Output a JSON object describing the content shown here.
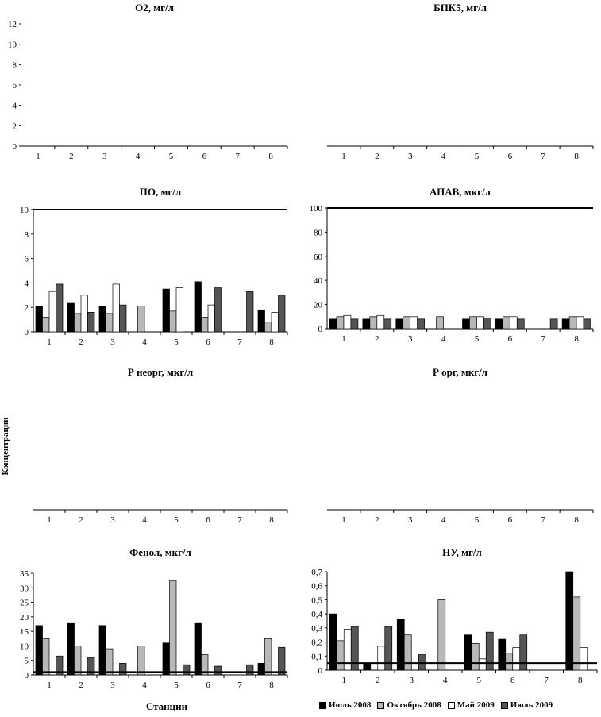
{
  "colors": {
    "jul2008": "#000000",
    "oct2008": "#b8b8b8",
    "may2009": "#ffffff",
    "jul2009": "#555555"
  },
  "x_axis_label": "Станции",
  "y_axis_label": "Концентрации",
  "legend": [
    {
      "key": "jul2008",
      "label": "Июль 2008"
    },
    {
      "key": "oct2008",
      "label": "Октябрь 2008"
    },
    {
      "key": "may2009",
      "label": "Май 2009"
    },
    {
      "key": "jul2009",
      "label": "Июль 2009"
    }
  ],
  "chart_data": [
    {
      "type": "bar",
      "title": "О2, мг/л",
      "categories": [
        "1",
        "2",
        "3",
        "4",
        "5",
        "6",
        "7",
        "8"
      ],
      "ylim": [
        0,
        12
      ],
      "yticks": [
        "0",
        "2",
        "4",
        "6",
        "8",
        "10",
        "12"
      ],
      "ytick_values": [
        0,
        2,
        4,
        6,
        8,
        10,
        12
      ],
      "series": [
        {
          "key": "jul2008",
          "name": "Июль 2008",
          "values": [
            null,
            null,
            null,
            null,
            null,
            null,
            null,
            null
          ]
        },
        {
          "key": "oct2008",
          "name": "Октябрь 2008",
          "values": [
            null,
            null,
            null,
            null,
            null,
            null,
            null,
            null
          ]
        },
        {
          "key": "may2009",
          "name": "Май 2009",
          "values": [
            null,
            null,
            null,
            null,
            null,
            null,
            null,
            null
          ]
        },
        {
          "key": "jul2009",
          "name": "Июль 2009",
          "values": [
            null,
            null,
            null,
            null,
            null,
            null,
            null,
            null
          ]
        }
      ],
      "threshold": null
    },
    {
      "type": "bar",
      "title": "БПК5, мг/л",
      "categories": [
        "1",
        "2",
        "3",
        "4",
        "5",
        "6",
        "7",
        "8"
      ],
      "ylim": [
        0,
        12
      ],
      "yticks": [],
      "ytick_values": [],
      "series": [
        {
          "key": "jul2008",
          "name": "Июль 2008",
          "values": [
            null,
            null,
            null,
            null,
            null,
            null,
            null,
            null
          ]
        },
        {
          "key": "oct2008",
          "name": "Октябрь 2008",
          "values": [
            null,
            null,
            null,
            null,
            null,
            null,
            null,
            null
          ]
        },
        {
          "key": "may2009",
          "name": "Май 2009",
          "values": [
            null,
            null,
            null,
            null,
            null,
            null,
            null,
            null
          ]
        },
        {
          "key": "jul2009",
          "name": "Июль 2009",
          "values": [
            null,
            null,
            null,
            null,
            null,
            null,
            null,
            null
          ]
        }
      ],
      "threshold": null
    },
    {
      "type": "bar",
      "title": "ПО, мг/л",
      "categories": [
        "1",
        "2",
        "3",
        "4",
        "5",
        "6",
        "7",
        "8"
      ],
      "ylim": [
        0,
        10
      ],
      "yticks": [
        "0",
        "2",
        "4",
        "6",
        "8",
        "10"
      ],
      "ytick_values": [
        0,
        2,
        4,
        6,
        8,
        10
      ],
      "series": [
        {
          "key": "jul2008",
          "name": "Июль 2008",
          "values": [
            2.1,
            2.4,
            2.1,
            null,
            3.5,
            4.1,
            null,
            1.8
          ]
        },
        {
          "key": "oct2008",
          "name": "Октябрь 2008",
          "values": [
            1.2,
            1.5,
            1.5,
            2.1,
            1.7,
            1.2,
            null,
            0.8
          ]
        },
        {
          "key": "may2009",
          "name": "Май 2009",
          "values": [
            3.3,
            3.0,
            3.9,
            null,
            3.6,
            2.2,
            null,
            1.6
          ]
        },
        {
          "key": "jul2009",
          "name": "Июль 2009",
          "values": [
            3.9,
            1.6,
            2.2,
            null,
            null,
            3.6,
            3.3,
            3.0
          ]
        }
      ],
      "threshold": 10
    },
    {
      "type": "bar",
      "title": "АПАВ, мкг/л",
      "categories": [
        "1",
        "2",
        "3",
        "4",
        "5",
        "6",
        "7",
        "8"
      ],
      "ylim": [
        0,
        100
      ],
      "yticks": [
        "0",
        "20",
        "40",
        "60",
        "80",
        "100"
      ],
      "ytick_values": [
        0,
        20,
        40,
        60,
        80,
        100
      ],
      "series": [
        {
          "key": "jul2008",
          "name": "Июль 2008",
          "values": [
            8,
            8,
            8,
            null,
            8,
            8,
            null,
            8
          ]
        },
        {
          "key": "oct2008",
          "name": "Октябрь 2008",
          "values": [
            10,
            10,
            10,
            10,
            10,
            10,
            null,
            10
          ]
        },
        {
          "key": "may2009",
          "name": "Май 2009",
          "values": [
            11,
            11,
            10,
            null,
            10,
            10,
            null,
            10
          ]
        },
        {
          "key": "jul2009",
          "name": "Июль 2009",
          "values": [
            8,
            8,
            8,
            null,
            9,
            8,
            8,
            8
          ]
        }
      ],
      "threshold": 100
    },
    {
      "type": "bar",
      "title": "Р неорг, мкг/л",
      "categories": [
        "1",
        "2",
        "3",
        "4",
        "5",
        "6",
        "7",
        "8"
      ],
      "ylim": [
        0,
        12
      ],
      "yticks": [],
      "ytick_values": [],
      "series": [
        {
          "key": "jul2008",
          "name": "Июль 2008",
          "values": [
            null,
            null,
            null,
            null,
            null,
            null,
            null,
            null
          ]
        },
        {
          "key": "oct2008",
          "name": "Октябрь 2008",
          "values": [
            null,
            null,
            null,
            null,
            null,
            null,
            null,
            null
          ]
        },
        {
          "key": "may2009",
          "name": "Май 2009",
          "values": [
            null,
            null,
            null,
            null,
            null,
            null,
            null,
            null
          ]
        },
        {
          "key": "jul2009",
          "name": "Июль 2009",
          "values": [
            null,
            null,
            null,
            null,
            null,
            null,
            null,
            null
          ]
        }
      ],
      "threshold": null
    },
    {
      "type": "bar",
      "title": "Р орг, мкг/л",
      "categories": [
        "1",
        "2",
        "3",
        "4",
        "5",
        "6",
        "7",
        "8"
      ],
      "ylim": [
        0,
        12
      ],
      "yticks": [],
      "ytick_values": [],
      "series": [
        {
          "key": "jul2008",
          "name": "Июль 2008",
          "values": [
            null,
            null,
            null,
            null,
            null,
            null,
            null,
            null
          ]
        },
        {
          "key": "oct2008",
          "name": "Октябрь 2008",
          "values": [
            null,
            null,
            null,
            null,
            null,
            null,
            null,
            null
          ]
        },
        {
          "key": "may2009",
          "name": "Май 2009",
          "values": [
            null,
            null,
            null,
            null,
            null,
            null,
            null,
            null
          ]
        },
        {
          "key": "jul2009",
          "name": "Июль 2009",
          "values": [
            null,
            null,
            null,
            null,
            null,
            null,
            null,
            null
          ]
        }
      ],
      "threshold": null
    },
    {
      "type": "bar",
      "title": "Фенол, мкг/л",
      "categories": [
        "1",
        "2",
        "3",
        "4",
        "5",
        "6",
        "7",
        "8"
      ],
      "ylim": [
        0,
        35
      ],
      "yticks": [
        "0",
        "5",
        "10",
        "15",
        "20",
        "25",
        "30",
        "35"
      ],
      "ytick_values": [
        0,
        5,
        10,
        15,
        20,
        25,
        30,
        35
      ],
      "series": [
        {
          "key": "jul2008",
          "name": "Июль 2008",
          "values": [
            17,
            18,
            17,
            null,
            11,
            18,
            null,
            4
          ]
        },
        {
          "key": "oct2008",
          "name": "Октябрь 2008",
          "values": [
            12.5,
            10,
            9,
            10,
            32.5,
            7,
            null,
            12.5
          ]
        },
        {
          "key": "may2009",
          "name": "Май 2009",
          "values": [
            null,
            null,
            null,
            null,
            null,
            null,
            null,
            null
          ]
        },
        {
          "key": "jul2009",
          "name": "Июль 2009",
          "values": [
            6.5,
            6,
            4,
            null,
            3.5,
            3,
            3.5,
            9.5
          ]
        }
      ],
      "threshold": 1
    },
    {
      "type": "bar",
      "title": "НУ, мг/л",
      "categories": [
        "1",
        "2",
        "3",
        "4",
        "5",
        "6",
        "7",
        "8"
      ],
      "ylim": [
        0,
        0.7
      ],
      "yticks": [
        "0",
        "0,1",
        "0,2",
        "0,3",
        "0,4",
        "0,5",
        "0,6",
        "0,7"
      ],
      "ytick_values": [
        0,
        0.1,
        0.2,
        0.3,
        0.4,
        0.5,
        0.6,
        0.7
      ],
      "series": [
        {
          "key": "jul2008",
          "name": "Июль 2008",
          "values": [
            0.4,
            0.05,
            0.36,
            null,
            0.25,
            0.22,
            null,
            0.7
          ]
        },
        {
          "key": "oct2008",
          "name": "Октябрь 2008",
          "values": [
            0.21,
            null,
            0.25,
            0.5,
            0.19,
            0.12,
            null,
            0.52
          ]
        },
        {
          "key": "may2009",
          "name": "Май 2009",
          "values": [
            0.29,
            0.17,
            null,
            null,
            0.08,
            0.16,
            null,
            0.16
          ]
        },
        {
          "key": "jul2009",
          "name": "Июль 2009",
          "values": [
            0.31,
            0.31,
            0.11,
            null,
            0.27,
            0.25,
            null,
            null
          ]
        }
      ],
      "threshold": 0.05
    }
  ]
}
